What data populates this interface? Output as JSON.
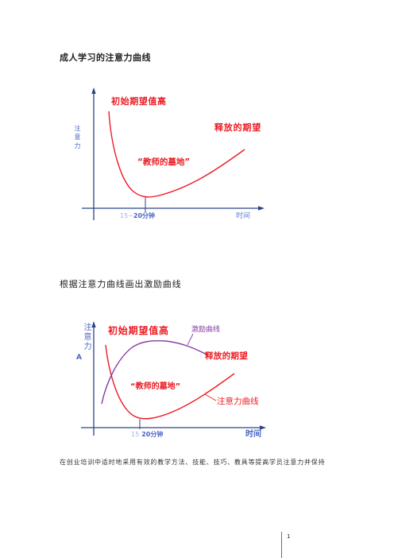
{
  "page": {
    "heading_1": "成人学习的注意力曲线",
    "heading_2": "根据注意力曲线画出激励曲线",
    "body_text": "在创业培训中适时地采用有效的教学方法、技能、技巧、教具等提高学员注意力并保持",
    "page_number": "1"
  },
  "diagram_1": {
    "y_axis_label": "注意力",
    "start_label": "初始期望值高",
    "release_label": "释放的期望",
    "trough_label": "“教师的墓地”",
    "time_from": "15~",
    "time_to": "20分钟",
    "x_axis_label": "时间"
  },
  "diagram_2": {
    "y_axis_label": "注意力",
    "y_axis_letter": "A",
    "start_label": "初始期望值高",
    "motivation_curve_label": "激励曲线",
    "release_label": "释放的期望",
    "trough_label": "“教师的墓地”",
    "attention_curve_label": "注意力曲线",
    "time_from": "15",
    "time_to": "20分钟",
    "x_axis_label": "时间"
  },
  "colors": {
    "axis": "#2b4486",
    "label_blue": "#4a64c6",
    "label_light_blue": "#9cb0e6",
    "curve_red": "#ec1c24",
    "curve_purple": "#8a3ca6",
    "page_rule": "#4472c4"
  }
}
